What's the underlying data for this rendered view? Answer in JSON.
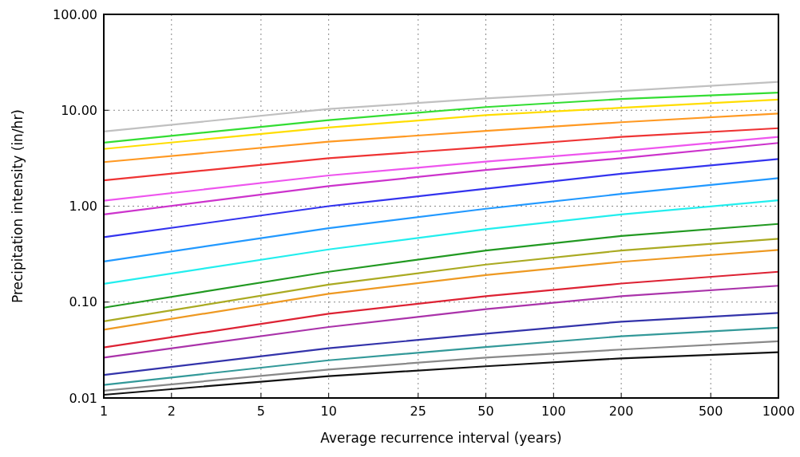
{
  "chart_data": {
    "type": "line",
    "xlabel": "Average recurrence interval (years)",
    "ylabel": "Precipitation intensity (in/hr)",
    "log": "xy",
    "grid": true,
    "line_style": "solid",
    "marker": "none",
    "x": [
      1,
      10,
      50,
      200,
      1000
    ],
    "xlim": [
      1,
      1000
    ],
    "xticks": [
      1,
      2,
      5,
      10,
      25,
      50,
      100,
      200,
      500,
      1000
    ],
    "ylim": [
      0.01,
      100
    ],
    "yticks": [
      {
        "value": 0.01,
        "label": "0.01"
      },
      {
        "value": 0.1,
        "label": "0.10"
      },
      {
        "value": 1,
        "label": "1.00"
      },
      {
        "value": 10,
        "label": "10.00"
      },
      {
        "value": 100,
        "label": "100.00"
      }
    ],
    "series": [
      {
        "color": "#c0c0c0",
        "values": [
          6.0,
          10.3,
          13.3,
          15.9,
          19.8
        ]
      },
      {
        "color": "#33dd33",
        "values": [
          4.6,
          7.9,
          10.8,
          13.1,
          15.3
        ]
      },
      {
        "color": "#ffdd00",
        "values": [
          3.95,
          6.6,
          8.9,
          10.6,
          12.9
        ]
      },
      {
        "color": "#ff9922",
        "values": [
          2.88,
          4.7,
          6.1,
          7.5,
          9.25
        ]
      },
      {
        "color": "#ee3333",
        "values": [
          1.86,
          3.16,
          4.14,
          5.27,
          6.5
        ]
      },
      {
        "color": "#ee55ee",
        "values": [
          1.14,
          2.09,
          2.91,
          3.76,
          5.27
        ]
      },
      {
        "color": "#cc33cc",
        "values": [
          0.82,
          1.62,
          2.38,
          3.16,
          4.56
        ]
      },
      {
        "color": "#3333ee",
        "values": [
          0.475,
          1.0,
          1.52,
          2.18,
          3.1
        ]
      },
      {
        "color": "#2299ff",
        "values": [
          0.265,
          0.59,
          0.94,
          1.34,
          1.96
        ]
      },
      {
        "color": "#22eeee",
        "values": [
          0.155,
          0.354,
          0.575,
          0.82,
          1.15
        ]
      },
      {
        "color": "#229922",
        "values": [
          0.0875,
          0.207,
          0.345,
          0.488,
          0.653
        ]
      },
      {
        "color": "#aaaa22",
        "values": [
          0.063,
          0.152,
          0.246,
          0.345,
          0.458
        ]
      },
      {
        "color": "#ee9922",
        "values": [
          0.0516,
          0.122,
          0.191,
          0.263,
          0.35
        ]
      },
      {
        "color": "#dd2233",
        "values": [
          0.0336,
          0.0757,
          0.115,
          0.156,
          0.207
        ]
      },
      {
        "color": "#aa33aa",
        "values": [
          0.0264,
          0.055,
          0.0843,
          0.115,
          0.148
        ]
      },
      {
        "color": "#3333aa",
        "values": [
          0.0174,
          0.033,
          0.0469,
          0.0625,
          0.077
        ]
      },
      {
        "color": "#339999",
        "values": [
          0.0137,
          0.0247,
          0.034,
          0.044,
          0.054
        ]
      },
      {
        "color": "#888888",
        "values": [
          0.0119,
          0.0198,
          0.0264,
          0.032,
          0.039
        ]
      },
      {
        "color": "#111111",
        "values": [
          0.0108,
          0.0169,
          0.0214,
          0.0259,
          0.03
        ]
      }
    ]
  }
}
